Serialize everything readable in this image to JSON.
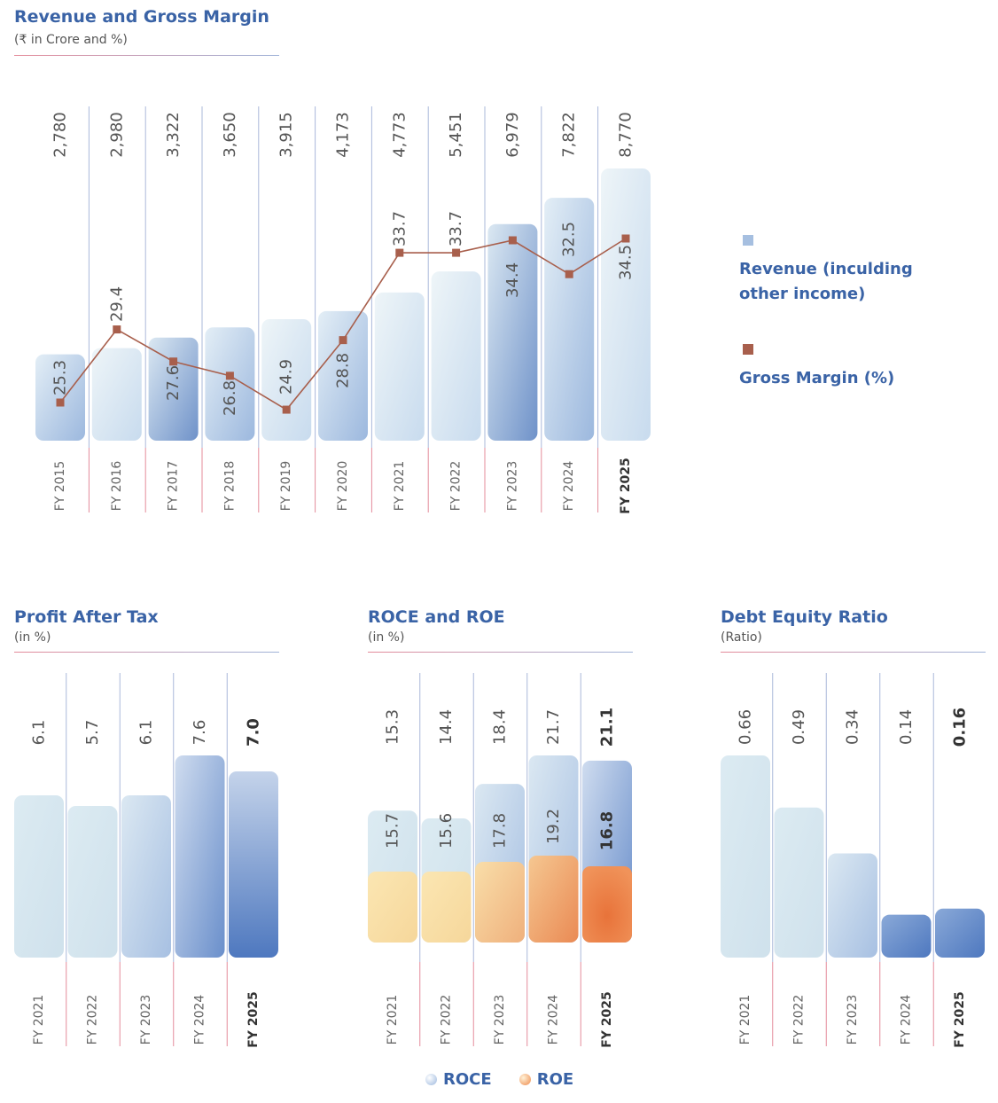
{
  "colors": {
    "title": "#3a63a6",
    "bar_light": "#dcebf3",
    "bar_dark": "#5d86c4",
    "roe_light": "#f8dea3",
    "roe_dark": "#ec7d40",
    "line": "#a85f4c",
    "marker": "#a85f4c",
    "divider": "#e48b9a"
  },
  "revenue_chart": {
    "title": "Revenue and Gross Margin",
    "subtitle": "(₹ in Crore and %)",
    "legend": {
      "revenue_line1": "Revenue (inculding",
      "revenue_line2": "other income)",
      "margin": "Gross Margin (%)"
    }
  },
  "pat_chart": {
    "title": "Profit After Tax",
    "subtitle": "(in %)"
  },
  "roce_chart": {
    "title": "ROCE and ROE",
    "subtitle": "(in %)",
    "legend": {
      "roce": "ROCE",
      "roe": "ROE"
    }
  },
  "de_chart": {
    "title": "Debt Equity Ratio",
    "subtitle": "(Ratio)"
  },
  "chart_data": [
    {
      "type": "bar",
      "title": "Revenue and Gross Margin",
      "subtitle": "(₹ in Crore and %)",
      "categories": [
        "FY 2015",
        "FY 2016",
        "FY 2017",
        "FY 2018",
        "FY 2019",
        "FY 2020",
        "FY 2021",
        "FY 2022",
        "FY 2023",
        "FY 2024",
        "FY 2025"
      ],
      "value_labels": [
        "2,780",
        "2,980",
        "3,322",
        "3,650",
        "3,915",
        "4,173",
        "4,773",
        "5,451",
        "6,979",
        "7,822",
        "8,770"
      ],
      "series": [
        {
          "name": "Revenue (inculding other income)",
          "type": "bar",
          "values": [
            2780,
            2980,
            3322,
            3650,
            3915,
            4173,
            4773,
            5451,
            6979,
            7822,
            8770
          ]
        },
        {
          "name": "Gross Margin (%)",
          "type": "line",
          "values": [
            25.3,
            29.4,
            27.6,
            26.8,
            24.9,
            28.8,
            33.7,
            33.7,
            34.4,
            32.5,
            34.5
          ],
          "labels": [
            "25.3",
            "29.4",
            "27.6",
            "26.8",
            "24.9",
            "28.8",
            "33.7",
            "33.7",
            "34.4",
            "32.5",
            "34.5"
          ]
        }
      ],
      "legend": "right",
      "grid": false
    },
    {
      "type": "bar",
      "title": "Profit After Tax",
      "subtitle": "(in %)",
      "categories": [
        "FY 2021",
        "FY 2022",
        "FY 2023",
        "FY 2024",
        "FY 2025"
      ],
      "values": [
        6.1,
        5.7,
        6.1,
        7.6,
        7.0
      ],
      "value_labels": [
        "6.1",
        "5.7",
        "6.1",
        "7.6",
        "7.0"
      ],
      "grid": false
    },
    {
      "type": "bar",
      "title": "ROCE and ROE",
      "subtitle": "(in %)",
      "categories": [
        "FY 2021",
        "FY 2022",
        "FY 2023",
        "FY 2024",
        "FY 2025"
      ],
      "series": [
        {
          "name": "ROCE",
          "values": [
            15.3,
            14.4,
            18.4,
            21.7,
            21.1
          ],
          "labels": [
            "15.3",
            "14.4",
            "18.4",
            "21.7",
            "21.1"
          ]
        },
        {
          "name": "ROE",
          "values": [
            15.7,
            15.6,
            17.8,
            19.2,
            16.8
          ],
          "labels": [
            "15.7",
            "15.6",
            "17.8",
            "19.2",
            "16.8"
          ]
        }
      ],
      "legend": "bottom",
      "grid": false
    },
    {
      "type": "bar",
      "title": "Debt Equity Ratio",
      "subtitle": "(Ratio)",
      "categories": [
        "FY 2021",
        "FY 2022",
        "FY 2023",
        "FY 2024",
        "FY 2025"
      ],
      "values": [
        0.66,
        0.49,
        0.34,
        0.14,
        0.16
      ],
      "value_labels": [
        "0.66",
        "0.49",
        "0.34",
        "0.14",
        "0.16"
      ],
      "grid": false
    }
  ]
}
